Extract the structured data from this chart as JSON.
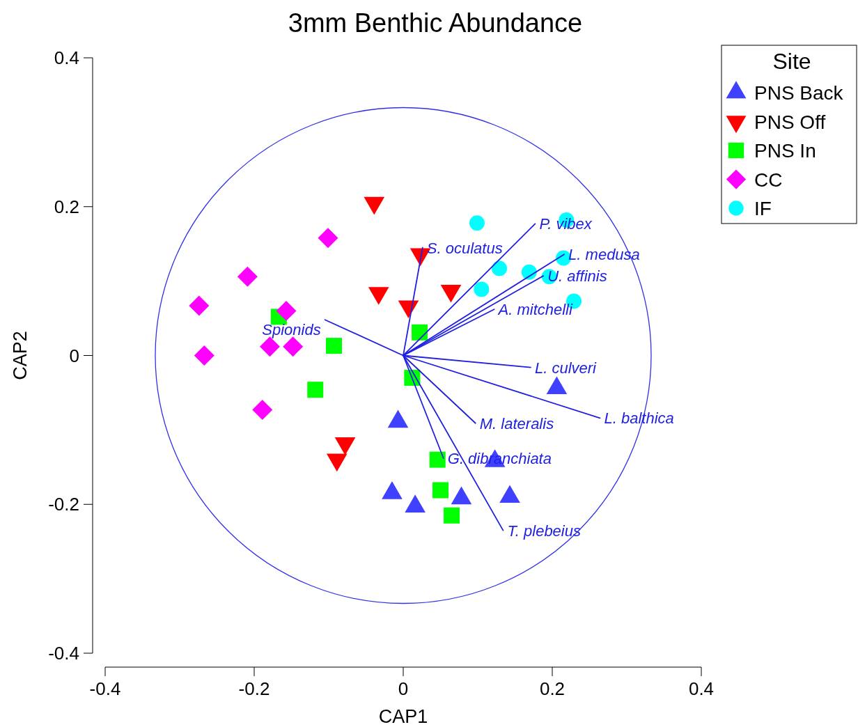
{
  "chart_data": {
    "type": "scatter",
    "title": "3mm Benthic Abundance",
    "xlabel": "CAP1",
    "ylabel": "CAP2",
    "legend_title": "Site",
    "legend": "top right",
    "xlim": [
      -0.4,
      0.4
    ],
    "xticks": [
      -0.4,
      -0.2,
      0,
      0.2,
      0.4
    ],
    "ylim": [
      -0.4,
      0.4
    ],
    "yticks": [
      -0.4,
      -0.2,
      0,
      0.2,
      0.4
    ],
    "series": [
      {
        "type": "line",
        "name": "S. oculatus",
        "color": "#2020e0",
        "x": [
          0,
          0.026
        ],
        "values": [
          0,
          0.145
        ]
      },
      {
        "type": "line",
        "name": "P. vibex",
        "color": "#2020e0",
        "x": [
          0,
          0.177
        ],
        "values": [
          0,
          0.177
        ]
      },
      {
        "type": "line",
        "name": "L. medusa",
        "color": "#2020e0",
        "x": [
          0,
          0.216
        ],
        "values": [
          0,
          0.136
        ]
      },
      {
        "type": "line",
        "name": "U. affinis",
        "color": "#2020e0",
        "x": [
          0,
          0.188
        ],
        "values": [
          0,
          0.107
        ]
      },
      {
        "type": "line",
        "name": "A. mitchelli",
        "color": "#2020e0",
        "x": [
          0,
          0.122
        ],
        "values": [
          0,
          0.062
        ]
      },
      {
        "type": "line",
        "name": "Spionids",
        "color": "#2020e0",
        "x": [
          0,
          -0.105
        ],
        "values": [
          0,
          0.048
        ]
      },
      {
        "type": "line",
        "name": "L. culveri",
        "color": "#2020e0",
        "x": [
          0,
          0.171
        ],
        "values": [
          0,
          -0.016
        ]
      },
      {
        "type": "line",
        "name": "L. balthica",
        "color": "#2020e0",
        "x": [
          0,
          0.264
        ],
        "values": [
          0,
          -0.084
        ]
      },
      {
        "type": "line",
        "name": "M. lateralis",
        "color": "#2020e0",
        "x": [
          0,
          0.097
        ],
        "values": [
          0,
          -0.091
        ]
      },
      {
        "type": "line",
        "name": "G. dibranchiata",
        "color": "#2020e0",
        "x": [
          0,
          0.054
        ],
        "values": [
          0,
          -0.138
        ]
      },
      {
        "type": "line",
        "name": "T. plebeius",
        "color": "#2020e0",
        "x": [
          0,
          0.134
        ],
        "values": [
          0,
          -0.235
        ]
      },
      {
        "type": "scatter",
        "name": "PNS Back",
        "color": "#4040ff",
        "marker": "triangle",
        "x": [
          0.206,
          -0.007,
          0.123,
          -0.015,
          0.016,
          0.078,
          0.143
        ],
        "values": [
          -0.044,
          -0.089,
          -0.142,
          -0.185,
          -0.203,
          -0.192,
          -0.19
        ]
      },
      {
        "type": "scatter",
        "name": "PNS Off",
        "color": "#ff0000",
        "marker": "triangle-down",
        "x": [
          -0.039,
          0.023,
          -0.033,
          0.007,
          0.064,
          -0.078,
          -0.089
        ],
        "values": [
          0.205,
          0.136,
          0.084,
          0.066,
          0.087,
          -0.118,
          -0.14
        ]
      },
      {
        "type": "scatter",
        "name": "PNS In",
        "color": "#00ff00",
        "marker": "square",
        "x": [
          -0.167,
          -0.093,
          0.022,
          -0.118,
          0.012,
          0.046,
          0.05,
          0.065
        ],
        "values": [
          0.052,
          0.013,
          0.031,
          -0.046,
          -0.03,
          -0.14,
          -0.181,
          -0.215
        ]
      },
      {
        "type": "scatter",
        "name": "CC",
        "color": "#ff00ff",
        "marker": "diamond",
        "x": [
          -0.101,
          -0.209,
          -0.274,
          -0.157,
          -0.179,
          -0.148,
          -0.267,
          -0.189
        ],
        "values": [
          0.158,
          0.106,
          0.067,
          0.06,
          0.012,
          0.012,
          0,
          -0.073
        ]
      },
      {
        "type": "scatter",
        "name": "IF",
        "color": "#00ffff",
        "marker": "circle",
        "x": [
          0.099,
          0.219,
          0.215,
          0.129,
          0.169,
          0.196,
          0.105,
          0.229
        ],
        "values": [
          0.178,
          0.182,
          0.131,
          0.117,
          0.112,
          0.106,
          0.089,
          0.073
        ]
      }
    ]
  }
}
